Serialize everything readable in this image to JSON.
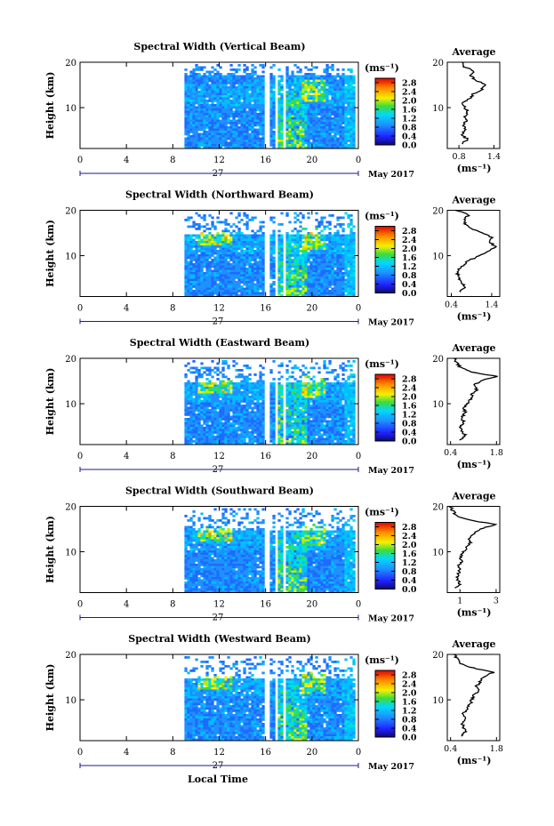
{
  "chart_data": [
    {
      "type": "heatmap",
      "title": "Spectral Width (Vertical Beam)",
      "ylabel": "Height (km)",
      "yticks": [
        "20",
        "10"
      ],
      "xticks": [
        "0",
        "4",
        "8",
        "12",
        "16",
        "20",
        "0"
      ],
      "day_label": "27",
      "month_label": "May 2017",
      "xlim": [
        0,
        24
      ],
      "ylim": [
        1,
        20
      ],
      "data_start_hour": 9,
      "gaps_hours": [
        [
          15.9,
          16.2
        ],
        [
          16.6,
          16.9
        ],
        [
          17.4,
          17.6
        ]
      ],
      "colorbar": {
        "unit": "(ms⁻¹)",
        "ticks": [
          "2.8",
          "2.4",
          "2.0",
          "1.6",
          "1.2",
          "0.8",
          "0.4",
          "0.0"
        ],
        "range": [
          0,
          3.0
        ]
      },
      "profile": {
        "title": "Average",
        "xlabel": "(ms⁻¹)",
        "xticks": [
          "0.8",
          "1.4"
        ],
        "xlim": [
          0.6,
          1.5
        ],
        "ylim": [
          1,
          20
        ],
        "yticks": [
          "20",
          "10"
        ],
        "heights_km": [
          2,
          3,
          4,
          5,
          6,
          7,
          8,
          9,
          10,
          11,
          12,
          13,
          14,
          15,
          16,
          17,
          18,
          19,
          20
        ],
        "values": [
          0.85,
          0.95,
          0.85,
          0.9,
          0.88,
          0.92,
          0.9,
          0.95,
          0.9,
          0.85,
          0.98,
          1.05,
          1.2,
          1.25,
          1.1,
          1.0,
          1.05,
          0.9,
          0.85
        ]
      }
    },
    {
      "type": "heatmap",
      "title": "Spectral Width (Northward Beam)",
      "ylabel": "Height (km)",
      "yticks": [
        "20",
        "10"
      ],
      "xticks": [
        "0",
        "4",
        "8",
        "12",
        "16",
        "20",
        "0"
      ],
      "day_label": "27",
      "month_label": "May 2017",
      "xlim": [
        0,
        24
      ],
      "ylim": [
        1,
        20
      ],
      "data_start_hour": 9,
      "gaps_hours": [
        [
          15.9,
          16.2
        ],
        [
          16.6,
          16.9
        ],
        [
          17.4,
          17.6
        ]
      ],
      "colorbar": {
        "unit": "(ms⁻¹)",
        "ticks": [
          "2.8",
          "2.4",
          "2.0",
          "1.6",
          "1.2",
          "0.8",
          "0.4",
          "0.0"
        ],
        "range": [
          0,
          3.0
        ]
      },
      "profile": {
        "title": "Average",
        "xlabel": "(ms⁻¹)",
        "xticks": [
          "0.4",
          "1.4"
        ],
        "xlim": [
          0.3,
          1.6
        ],
        "ylim": [
          1,
          20
        ],
        "yticks": [
          "20",
          "10"
        ],
        "heights_km": [
          2,
          3,
          4,
          5,
          6,
          7,
          8,
          9,
          10,
          11,
          12,
          13,
          14,
          15,
          16,
          17,
          18,
          19,
          20
        ],
        "values": [
          0.6,
          0.75,
          0.65,
          0.6,
          0.55,
          0.6,
          0.7,
          0.85,
          1.1,
          1.3,
          1.5,
          1.35,
          1.4,
          1.2,
          0.9,
          0.75,
          0.7,
          0.85,
          0.5
        ]
      }
    },
    {
      "type": "heatmap",
      "title": "Spectral Width (Eastward Beam)",
      "ylabel": "Height (km)",
      "yticks": [
        "20",
        "10"
      ],
      "xticks": [
        "0",
        "4",
        "8",
        "12",
        "16",
        "20",
        "0"
      ],
      "day_label": "27",
      "month_label": "May 2017",
      "xlim": [
        0,
        24
      ],
      "ylim": [
        1,
        20
      ],
      "data_start_hour": 9,
      "gaps_hours": [
        [
          15.9,
          16.2
        ],
        [
          16.6,
          16.9
        ],
        [
          17.4,
          17.6
        ]
      ],
      "colorbar": {
        "unit": "(ms⁻¹)",
        "ticks": [
          "2.8",
          "2.4",
          "2.0",
          "1.6",
          "1.2",
          "0.8",
          "0.4",
          "0.0"
        ],
        "range": [
          0,
          3.0
        ]
      },
      "profile": {
        "title": "Average",
        "xlabel": "(ms⁻¹)",
        "xticks": [
          "0.4",
          "1.8"
        ],
        "xlim": [
          0.3,
          1.9
        ],
        "ylim": [
          1,
          20
        ],
        "yticks": [
          "20",
          "10"
        ],
        "heights_km": [
          2,
          3,
          4,
          5,
          6,
          7,
          8,
          9,
          10,
          11,
          12,
          13,
          14,
          15,
          16,
          17,
          18,
          19,
          20
        ],
        "values": [
          0.7,
          0.85,
          0.75,
          0.7,
          0.8,
          0.75,
          0.85,
          0.8,
          0.9,
          1.0,
          1.05,
          1.2,
          1.1,
          1.3,
          1.8,
          1.0,
          0.7,
          0.6,
          0.5
        ]
      }
    },
    {
      "type": "heatmap",
      "title": "Spectral Width (Southward Beam)",
      "ylabel": "Height (km)",
      "yticks": [
        "20",
        "10"
      ],
      "xticks": [
        "0",
        "4",
        "8",
        "12",
        "16",
        "20",
        "0"
      ],
      "day_label": "27",
      "month_label": "May 2017",
      "xlim": [
        0,
        24
      ],
      "ylim": [
        1,
        20
      ],
      "data_start_hour": 9,
      "gaps_hours": [
        [
          15.9,
          16.2
        ],
        [
          16.6,
          16.9
        ],
        [
          17.4,
          17.6
        ]
      ],
      "colorbar": {
        "unit": "(ms⁻¹)",
        "ticks": [
          "2.8",
          "2.4",
          "2.0",
          "1.6",
          "1.2",
          "0.8",
          "0.4",
          "0.0"
        ],
        "range": [
          0,
          3.0
        ]
      },
      "profile": {
        "title": "Average",
        "xlabel": "(ms⁻¹)",
        "xticks": [
          "1",
          "3"
        ],
        "xlim": [
          0.3,
          3.2
        ],
        "ylim": [
          1,
          20
        ],
        "yticks": [
          "20",
          "10"
        ],
        "heights_km": [
          2,
          3,
          4,
          5,
          6,
          7,
          8,
          9,
          10,
          11,
          12,
          13,
          14,
          15,
          16,
          17,
          18,
          19,
          20
        ],
        "values": [
          0.8,
          1.0,
          0.85,
          0.9,
          1.0,
          0.95,
          1.1,
          1.0,
          1.2,
          1.4,
          1.6,
          1.5,
          1.8,
          2.1,
          3.0,
          1.5,
          0.8,
          0.6,
          0.5
        ]
      }
    },
    {
      "type": "heatmap",
      "title": "Spectral Width (Westward Beam)",
      "ylabel": "Height (km)",
      "yticks": [
        "20",
        "10"
      ],
      "xticks": [
        "0",
        "4",
        "8",
        "12",
        "16",
        "20",
        "0"
      ],
      "day_label": "27",
      "month_label": "May 2017",
      "xlim": [
        0,
        24
      ],
      "ylim": [
        1,
        20
      ],
      "data_start_hour": 9,
      "gaps_hours": [
        [
          15.9,
          16.2
        ],
        [
          16.6,
          16.9
        ],
        [
          17.4,
          17.6
        ]
      ],
      "colorbar": {
        "unit": "(ms⁻¹)",
        "ticks": [
          "2.8",
          "2.4",
          "2.0",
          "1.6",
          "1.2",
          "0.8",
          "0.4",
          "0.0"
        ],
        "range": [
          0,
          3.0
        ]
      },
      "profile": {
        "title": "Average",
        "xlabel": "(ms⁻¹)",
        "xticks": [
          "0.4",
          "1.8"
        ],
        "xlim": [
          0.3,
          1.9
        ],
        "ylim": [
          1,
          20
        ],
        "yticks": [
          "20",
          "10"
        ],
        "heights_km": [
          2,
          3,
          4,
          5,
          6,
          7,
          8,
          9,
          10,
          11,
          12,
          13,
          14,
          15,
          16,
          17,
          18,
          19,
          20
        ],
        "values": [
          0.75,
          0.85,
          0.8,
          0.75,
          0.85,
          0.8,
          0.9,
          1.0,
          1.05,
          1.1,
          1.25,
          1.2,
          1.3,
          1.4,
          1.7,
          1.1,
          0.7,
          0.6,
          0.5
        ]
      }
    }
  ],
  "figure": {
    "xlabel": "Local Time"
  },
  "colors": {
    "axis": "#000000",
    "background": "#ffffff"
  }
}
